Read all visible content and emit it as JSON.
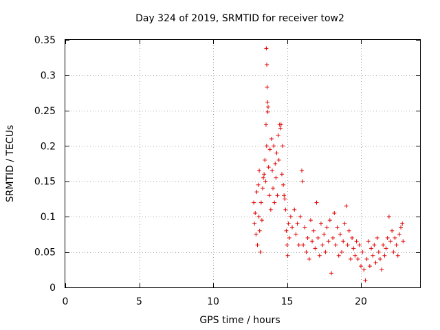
{
  "chart_data": {
    "type": "scatter",
    "title": "Day 324 of 2019, SRMTID for receiver tow2",
    "xlabel": "GPS time / hours",
    "ylabel": "SRMTID / TECUs",
    "xlim": [
      0,
      24
    ],
    "ylim": [
      0,
      0.35
    ],
    "xticks": [
      0,
      5,
      10,
      15,
      20
    ],
    "yticks": [
      0,
      0.05,
      0.1,
      0.15,
      0.2,
      0.25,
      0.3,
      0.35
    ],
    "xtick_labels": [
      "0",
      "5",
      "10",
      "15",
      "20"
    ],
    "ytick_labels": [
      "0",
      "0.05",
      "0.1",
      "0.15",
      "0.2",
      "0.25",
      "0.3",
      "0.35"
    ],
    "grid": true,
    "marker": "+",
    "series": [
      {
        "name": "SRMTID",
        "color": "#e00000",
        "points": [
          [
            12.75,
            0.12
          ],
          [
            12.8,
            0.09
          ],
          [
            12.85,
            0.105
          ],
          [
            12.9,
            0.075
          ],
          [
            12.95,
            0.135
          ],
          [
            13.0,
            0.06
          ],
          [
            13.05,
            0.145
          ],
          [
            13.1,
            0.1
          ],
          [
            13.12,
            0.165
          ],
          [
            13.15,
            0.08
          ],
          [
            13.2,
            0.05
          ],
          [
            13.25,
            0.12
          ],
          [
            13.3,
            0.095
          ],
          [
            13.35,
            0.14
          ],
          [
            13.4,
            0.155
          ],
          [
            13.45,
            0.16
          ],
          [
            13.5,
            0.18
          ],
          [
            13.55,
            0.15
          ],
          [
            13.58,
            0.23
          ],
          [
            13.6,
            0.338
          ],
          [
            13.62,
            0.2
          ],
          [
            13.63,
            0.315
          ],
          [
            13.65,
            0.283
          ],
          [
            13.68,
            0.262
          ],
          [
            13.7,
            0.248
          ],
          [
            13.72,
            0.255
          ],
          [
            13.75,
            0.17
          ],
          [
            13.8,
            0.13
          ],
          [
            13.85,
            0.195
          ],
          [
            13.9,
            0.11
          ],
          [
            13.95,
            0.21
          ],
          [
            14.0,
            0.165
          ],
          [
            14.05,
            0.14
          ],
          [
            14.1,
            0.2
          ],
          [
            14.15,
            0.12
          ],
          [
            14.2,
            0.175
          ],
          [
            14.25,
            0.155
          ],
          [
            14.3,
            0.19
          ],
          [
            14.35,
            0.13
          ],
          [
            14.4,
            0.215
          ],
          [
            14.45,
            0.18
          ],
          [
            14.5,
            0.23
          ],
          [
            14.55,
            0.225
          ],
          [
            14.6,
            0.23
          ],
          [
            14.65,
            0.16
          ],
          [
            14.7,
            0.2
          ],
          [
            14.75,
            0.145
          ],
          [
            14.8,
            0.13
          ],
          [
            14.85,
            0.125
          ],
          [
            14.9,
            0.11
          ],
          [
            14.95,
            0.08
          ],
          [
            15.0,
            0.06
          ],
          [
            15.05,
            0.045
          ],
          [
            15.1,
            0.09
          ],
          [
            15.15,
            0.07
          ],
          [
            15.25,
            0.1
          ],
          [
            15.35,
            0.085
          ],
          [
            15.5,
            0.11
          ],
          [
            15.6,
            0.075
          ],
          [
            15.7,
            0.09
          ],
          [
            15.8,
            0.06
          ],
          [
            15.9,
            0.1
          ],
          [
            16.0,
            0.165
          ],
          [
            16.05,
            0.15
          ],
          [
            16.1,
            0.06
          ],
          [
            16.2,
            0.085
          ],
          [
            16.3,
            0.05
          ],
          [
            16.4,
            0.07
          ],
          [
            16.5,
            0.04
          ],
          [
            16.6,
            0.095
          ],
          [
            16.7,
            0.065
          ],
          [
            16.8,
            0.08
          ],
          [
            16.9,
            0.055
          ],
          [
            17.0,
            0.12
          ],
          [
            17.1,
            0.07
          ],
          [
            17.2,
            0.045
          ],
          [
            17.3,
            0.09
          ],
          [
            17.4,
            0.06
          ],
          [
            17.5,
            0.075
          ],
          [
            17.6,
            0.05
          ],
          [
            17.7,
            0.085
          ],
          [
            17.8,
            0.065
          ],
          [
            17.9,
            0.095
          ],
          [
            18.0,
            0.02
          ],
          [
            18.1,
            0.07
          ],
          [
            18.2,
            0.105
          ],
          [
            18.3,
            0.06
          ],
          [
            18.4,
            0.085
          ],
          [
            18.5,
            0.045
          ],
          [
            18.6,
            0.075
          ],
          [
            18.7,
            0.05
          ],
          [
            18.8,
            0.065
          ],
          [
            18.9,
            0.09
          ],
          [
            19.0,
            0.115
          ],
          [
            19.1,
            0.06
          ],
          [
            19.2,
            0.08
          ],
          [
            19.3,
            0.04
          ],
          [
            19.4,
            0.07
          ],
          [
            19.5,
            0.055
          ],
          [
            19.6,
            0.045
          ],
          [
            19.7,
            0.065
          ],
          [
            19.8,
            0.04
          ],
          [
            19.9,
            0.06
          ],
          [
            20.0,
            0.03
          ],
          [
            20.1,
            0.05
          ],
          [
            20.2,
            0.025
          ],
          [
            20.3,
            0.01
          ],
          [
            20.4,
            0.04
          ],
          [
            20.5,
            0.065
          ],
          [
            20.6,
            0.03
          ],
          [
            20.7,
            0.055
          ],
          [
            20.8,
            0.045
          ],
          [
            20.9,
            0.06
          ],
          [
            21.0,
            0.035
          ],
          [
            21.1,
            0.07
          ],
          [
            21.2,
            0.05
          ],
          [
            21.3,
            0.04
          ],
          [
            21.4,
            0.025
          ],
          [
            21.5,
            0.06
          ],
          [
            21.6,
            0.045
          ],
          [
            21.7,
            0.055
          ],
          [
            21.8,
            0.07
          ],
          [
            21.9,
            0.1
          ],
          [
            22.0,
            0.065
          ],
          [
            22.1,
            0.08
          ],
          [
            22.2,
            0.05
          ],
          [
            22.3,
            0.07
          ],
          [
            22.4,
            0.06
          ],
          [
            22.5,
            0.045
          ],
          [
            22.6,
            0.075
          ],
          [
            22.7,
            0.085
          ],
          [
            22.8,
            0.09
          ],
          [
            22.85,
            0.065
          ]
        ]
      }
    ]
  }
}
